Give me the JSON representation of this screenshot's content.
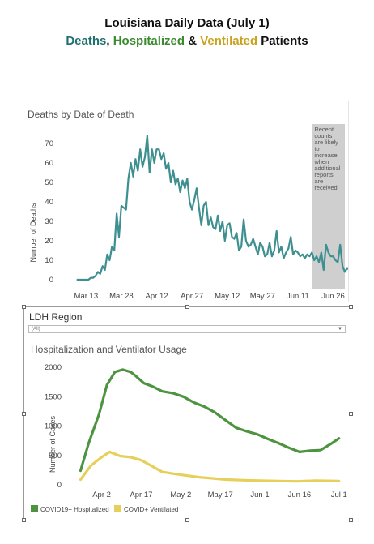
{
  "title": {
    "line1": "Louisiana Daily Data (July 1)",
    "deaths": "Deaths",
    "sep1": ", ",
    "hospitalized": "Hospitalized",
    "sep2": " & ",
    "ventilated": "Ventilated",
    "patients": " Patients"
  },
  "colors": {
    "deaths_line": "#3e8f8f",
    "hospitalized_line": "#4e9440",
    "ventilated_line": "#e6cf5a",
    "recent_band": "#cfcfcf"
  },
  "region_filter": {
    "label": "LDH Region",
    "value": "(All)"
  },
  "chart_data": [
    {
      "type": "line",
      "title": "Deaths by Date of Death",
      "ylabel": "Number of Deaths",
      "xlabel": "",
      "ylim": [
        0,
        75
      ],
      "yticks": [
        0,
        10,
        20,
        30,
        40,
        50,
        60,
        70
      ],
      "xlim": [
        "2020-03-06",
        "2020-07-01"
      ],
      "xticks": [
        {
          "date": "2020-03-13",
          "label": "Mar 13"
        },
        {
          "date": "2020-03-28",
          "label": "Mar 28"
        },
        {
          "date": "2020-04-12",
          "label": "Apr 12"
        },
        {
          "date": "2020-04-27",
          "label": "Apr 27"
        },
        {
          "date": "2020-05-12",
          "label": "May 12"
        },
        {
          "date": "2020-05-27",
          "label": "May 27"
        },
        {
          "date": "2020-06-11",
          "label": "Jun 11"
        },
        {
          "date": "2020-06-26",
          "label": "Jun 26"
        }
      ],
      "annotation": {
        "text": [
          "Recent",
          "counts",
          "are likely",
          "to",
          "increase",
          "when",
          "additional",
          "reports",
          "are",
          "received"
        ],
        "from": "2020-06-17",
        "to": "2020-07-01"
      },
      "series": [
        {
          "start_date": "2020-03-09",
          "values": [
            0,
            0,
            0,
            0,
            0,
            0,
            1,
            1,
            2,
            4,
            3,
            7,
            5,
            13,
            10,
            17,
            15,
            34,
            22,
            38,
            37,
            36,
            52,
            60,
            53,
            62,
            56,
            67,
            58,
            63,
            74,
            55,
            67,
            60,
            67,
            67,
            62,
            65,
            57,
            60,
            50,
            56,
            49,
            52,
            45,
            51,
            47,
            52,
            40,
            36,
            41,
            47,
            37,
            28,
            38,
            40,
            28,
            32,
            27,
            26,
            33,
            25,
            30,
            20,
            28,
            29,
            22,
            21,
            24,
            15,
            17,
            31,
            20,
            17,
            18,
            21,
            17,
            13,
            19,
            17,
            12,
            13,
            19,
            12,
            15,
            25,
            14,
            17,
            11,
            14,
            16,
            22,
            13,
            15,
            14,
            12,
            13,
            11,
            13,
            12,
            14,
            10,
            12,
            9,
            14,
            5,
            18,
            14,
            12,
            12,
            10,
            9,
            18,
            7,
            4,
            6,
            5,
            4,
            1
          ]
        }
      ]
    },
    {
      "type": "line",
      "title": "Hospitalization and Ventilator Usage",
      "ylabel": "Number of Cases",
      "xlabel": "",
      "ylim": [
        0,
        2000
      ],
      "yticks": [
        0,
        500,
        1000,
        1500,
        2000
      ],
      "xlim": [
        "2020-03-23",
        "2020-07-02"
      ],
      "xticks": [
        {
          "date": "2020-04-02",
          "label": "Apr 2"
        },
        {
          "date": "2020-04-17",
          "label": "Apr 17"
        },
        {
          "date": "2020-05-02",
          "label": "May 2"
        },
        {
          "date": "2020-05-17",
          "label": "May 17"
        },
        {
          "date": "2020-06-01",
          "label": "Jun 1"
        },
        {
          "date": "2020-06-16",
          "label": "Jun 16"
        },
        {
          "date": "2020-07-01",
          "label": "Jul 1"
        }
      ],
      "legend_position": "bottom-left",
      "series": [
        {
          "name": "COVID19+ Hospitalized",
          "points": [
            [
              "2020-03-25",
              240
            ],
            [
              "2020-03-28",
              700
            ],
            [
              "2020-04-01",
              1200
            ],
            [
              "2020-04-04",
              1700
            ],
            [
              "2020-04-07",
              1920
            ],
            [
              "2020-04-10",
              1960
            ],
            [
              "2020-04-13",
              1920
            ],
            [
              "2020-04-15",
              1850
            ],
            [
              "2020-04-18",
              1730
            ],
            [
              "2020-04-21",
              1680
            ],
            [
              "2020-04-25",
              1590
            ],
            [
              "2020-04-29",
              1560
            ],
            [
              "2020-05-03",
              1500
            ],
            [
              "2020-05-07",
              1400
            ],
            [
              "2020-05-11",
              1330
            ],
            [
              "2020-05-15",
              1230
            ],
            [
              "2020-05-19",
              1100
            ],
            [
              "2020-05-23",
              970
            ],
            [
              "2020-05-27",
              910
            ],
            [
              "2020-05-31",
              860
            ],
            [
              "2020-06-04",
              780
            ],
            [
              "2020-06-08",
              710
            ],
            [
              "2020-06-12",
              630
            ],
            [
              "2020-06-16",
              560
            ],
            [
              "2020-06-20",
              580
            ],
            [
              "2020-06-24",
              590
            ],
            [
              "2020-06-28",
              700
            ],
            [
              "2020-07-01",
              790
            ]
          ]
        },
        {
          "name": "COVID+ Ventilated",
          "points": [
            [
              "2020-03-25",
              90
            ],
            [
              "2020-03-29",
              330
            ],
            [
              "2020-04-02",
              470
            ],
            [
              "2020-04-05",
              560
            ],
            [
              "2020-04-09",
              490
            ],
            [
              "2020-04-13",
              470
            ],
            [
              "2020-04-17",
              420
            ],
            [
              "2020-04-21",
              320
            ],
            [
              "2020-04-25",
              220
            ],
            [
              "2020-04-29",
              190
            ],
            [
              "2020-05-04",
              160
            ],
            [
              "2020-05-09",
              130
            ],
            [
              "2020-05-14",
              110
            ],
            [
              "2020-05-19",
              90
            ],
            [
              "2020-05-25",
              80
            ],
            [
              "2020-06-01",
              70
            ],
            [
              "2020-06-08",
              65
            ],
            [
              "2020-06-15",
              60
            ],
            [
              "2020-06-22",
              70
            ],
            [
              "2020-07-01",
              65
            ]
          ]
        }
      ]
    }
  ]
}
